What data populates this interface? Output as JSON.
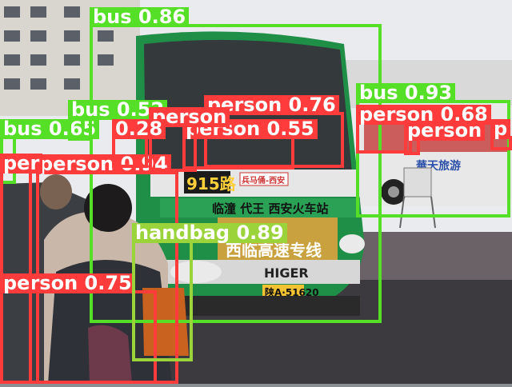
{
  "image": {
    "description_colors": {
      "sky": "#e9ebee",
      "ground": "#3d3a3f",
      "bus_green": "#1f8f47",
      "bus_white": "#e8e8e8"
    },
    "bus_front_sign": "915路",
    "bus_route": "兵马俑-西安",
    "bus_banner": "临潼 代王 西安火车站",
    "bus_lower_banner": "西临高速专线",
    "bus_brand": "HIGER",
    "plate": "陕A·51620",
    "side_bus_text": "華天旅游"
  },
  "detections": [
    {
      "class": "bus",
      "score": "0.86",
      "label": "bus 0.86",
      "color": "green"
    },
    {
      "class": "bus",
      "score": "0.93",
      "label": "bus 0.93",
      "color": "green"
    },
    {
      "class": "bus",
      "score": "0.65",
      "label": "bus 0.65",
      "color": "green"
    },
    {
      "class": "bus",
      "score": "0.52",
      "label": "bus 0.52",
      "color": "green"
    },
    {
      "class": "person",
      "score": "0.76",
      "label": "person 0.76",
      "color": "red"
    },
    {
      "class": "person",
      "score": "0.55",
      "label": "person 0.55",
      "color": "red"
    },
    {
      "class": "person",
      "score": "0.94",
      "label": "person 0.94",
      "color": "red"
    },
    {
      "class": "person",
      "score": "0.75",
      "label": "person 0.75",
      "color": "red"
    },
    {
      "class": "person",
      "score": "0.68",
      "label": "person 0.68",
      "color": "red"
    },
    {
      "class": "person",
      "score": "",
      "label": "person",
      "color": "red"
    },
    {
      "class": "person",
      "score": "",
      "label": "per",
      "color": "red"
    },
    {
      "class": "person",
      "score": "",
      "label": "person",
      "color": "red"
    },
    {
      "class": "person",
      "score": "0.28",
      "label": "0.28",
      "color": "red"
    },
    {
      "class": "person",
      "score": "",
      "label": "p",
      "color": "red"
    },
    {
      "class": "handbag",
      "score": "0.89",
      "label": "handbag 0.89",
      "color": "lime"
    }
  ]
}
